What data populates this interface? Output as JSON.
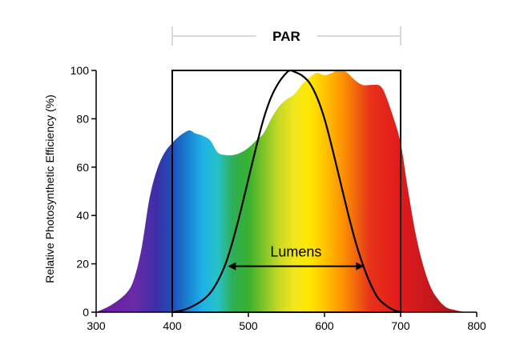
{
  "chart_data": {
    "type": "area",
    "title": "",
    "xlabel": "",
    "ylabel": "Relative Photosynthetic Efficiency (%)",
    "xlim": [
      300,
      800
    ],
    "ylim": [
      0,
      100
    ],
    "x_ticks": [
      300,
      400,
      500,
      600,
      700,
      800
    ],
    "y_ticks": [
      0,
      20,
      40,
      60,
      80,
      100
    ],
    "grid": false,
    "series": [
      {
        "type": "area",
        "fill": "spectrum",
        "x": [
          300,
          320,
          340,
          350,
          360,
          370,
          380,
          390,
          400,
          410,
          420,
          425,
          430,
          440,
          450,
          460,
          470,
          480,
          490,
          500,
          510,
          520,
          530,
          540,
          550,
          560,
          570,
          580,
          590,
          600,
          610,
          615,
          620,
          625,
          630,
          640,
          650,
          660,
          670,
          675,
          680,
          690,
          700,
          710,
          720,
          730,
          740,
          750,
          760,
          770,
          780,
          790
        ],
        "y": [
          0,
          3,
          8,
          14,
          27,
          47,
          59,
          66,
          70,
          73,
          75,
          75,
          74,
          73,
          71,
          66,
          65,
          65,
          66,
          68,
          71,
          74,
          80,
          85,
          88,
          90,
          94,
          97,
          99,
          98,
          99,
          100,
          100,
          100,
          99,
          96,
          94,
          94,
          94,
          93,
          90,
          81,
          70,
          50,
          32,
          19,
          10,
          5,
          2,
          1,
          0.3,
          0
        ]
      },
      {
        "type": "line",
        "x": [
          400,
          410,
          420,
          430,
          440,
          450,
          460,
          470,
          480,
          490,
          500,
          510,
          520,
          530,
          540,
          550,
          555,
          560,
          570,
          580,
          590,
          600,
          610,
          620,
          630,
          640,
          650,
          660,
          670,
          680,
          690,
          700
        ],
        "y": [
          0,
          0.5,
          1.5,
          3,
          5,
          8,
          13,
          20,
          30,
          42,
          55,
          68,
          80,
          89,
          95,
          99,
          100,
          99.5,
          98,
          95,
          89,
          80,
          68,
          55,
          42,
          30,
          20,
          12,
          6,
          3,
          1,
          0
        ]
      }
    ],
    "annotations": [
      {
        "type": "bracket",
        "label": "PAR",
        "x_start": 400,
        "x_end": 700
      },
      {
        "type": "box",
        "x_start": 400,
        "x_end": 700,
        "y_start": 0,
        "y_end": 100
      },
      {
        "type": "double_arrow",
        "label": "Lumens",
        "x_start": 473,
        "x_end": 652,
        "y": 19
      }
    ],
    "spectrum_colors": [
      {
        "x": 300,
        "color": "#6a1b9a"
      },
      {
        "x": 350,
        "color": "#6a2aa8"
      },
      {
        "x": 380,
        "color": "#3b2fa6"
      },
      {
        "x": 400,
        "color": "#1f4fb5"
      },
      {
        "x": 420,
        "color": "#1a7fd0"
      },
      {
        "x": 440,
        "color": "#1fb2e8"
      },
      {
        "x": 460,
        "color": "#26c2c7"
      },
      {
        "x": 480,
        "color": "#2fae55"
      },
      {
        "x": 500,
        "color": "#38b02f"
      },
      {
        "x": 520,
        "color": "#7fc42a"
      },
      {
        "x": 540,
        "color": "#c8d925"
      },
      {
        "x": 560,
        "color": "#f0e61e"
      },
      {
        "x": 580,
        "color": "#ffe800"
      },
      {
        "x": 600,
        "color": "#ffc400"
      },
      {
        "x": 620,
        "color": "#ff9a00"
      },
      {
        "x": 640,
        "color": "#f26a0c"
      },
      {
        "x": 660,
        "color": "#e8311a"
      },
      {
        "x": 700,
        "color": "#e01b1b"
      },
      {
        "x": 760,
        "color": "#b5161c"
      },
      {
        "x": 800,
        "color": "#9e1418"
      }
    ],
    "colors": {
      "axis": "#000000",
      "curve": "#000000",
      "bracket": "#d9d9d9",
      "box": "#000000"
    }
  }
}
